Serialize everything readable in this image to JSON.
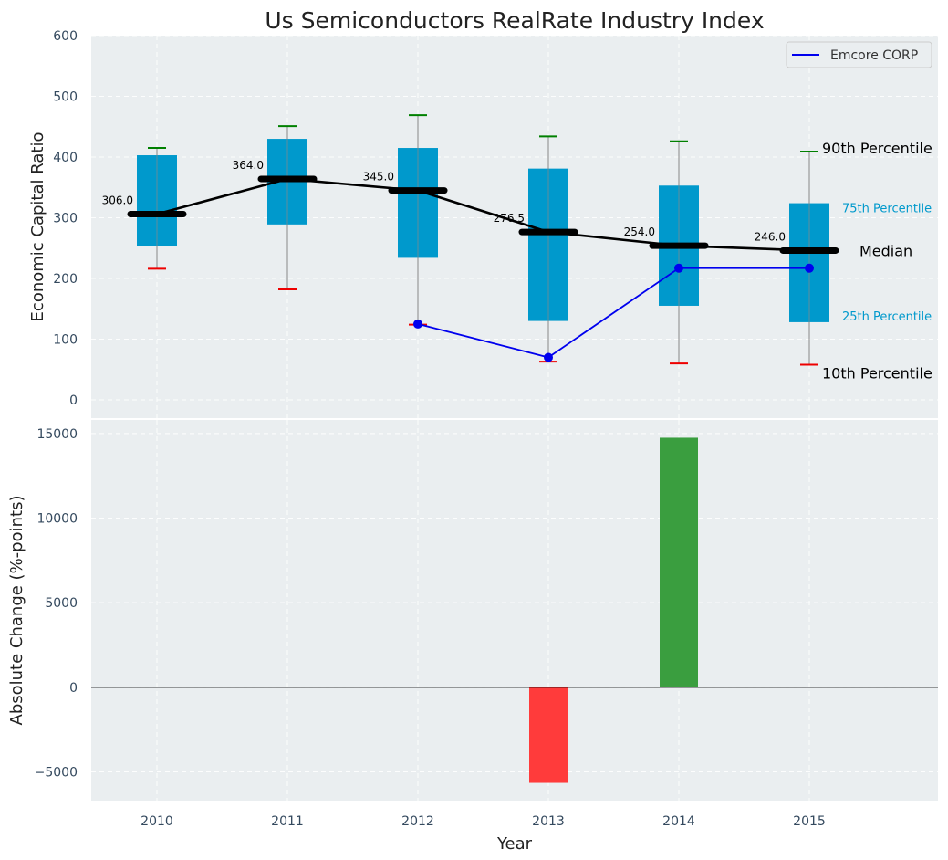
{
  "title": "Us Semiconductors RealRate Industry Index",
  "colors": {
    "plot_bg": "#eaeef0",
    "box_fill": "#0099cc",
    "median_line": "#000000",
    "company_line": "#0000ee",
    "upper_cap": "#008000",
    "lower_cap": "#ee0000",
    "whisker": "#888888",
    "bar_positive": "#3a9e3f",
    "bar_negative": "#ff3b3b",
    "annotation_blue": "#0099cc"
  },
  "chart_data": [
    {
      "type": "box",
      "title": "Us Semiconductors RealRate Industry Index",
      "ylabel": "Economic Capital Ratio",
      "ylim": [
        -30,
        600
      ],
      "yticks": [
        0,
        100,
        200,
        300,
        400,
        500,
        600
      ],
      "categories": [
        "2010",
        "2011",
        "2012",
        "2013",
        "2014",
        "2015"
      ],
      "p10": [
        216,
        182,
        124,
        63,
        60,
        58
      ],
      "p25": [
        253,
        289,
        234,
        130,
        155,
        128
      ],
      "median": [
        306.0,
        364.0,
        345.0,
        276.5,
        254.0,
        246.0
      ],
      "median_labels": [
        "306.0",
        "364.0",
        "345.0",
        "276.5",
        "254.0",
        "246.0"
      ],
      "p75": [
        403,
        430,
        415,
        381,
        353,
        324
      ],
      "p90": [
        415,
        451,
        469,
        434,
        426,
        409
      ],
      "company_series": {
        "name": "Emcore CORP",
        "categories": [
          "2012",
          "2013",
          "2014",
          "2015"
        ],
        "values": [
          125,
          70,
          217,
          217
        ]
      },
      "legend": {
        "entries": [
          "Emcore CORP"
        ],
        "position": "top-right"
      },
      "annotations": {
        "p90": "90th Percentile",
        "p75": "75th Percentile",
        "median": "Median",
        "p25": "25th Percentile",
        "p10": "10th Percentile"
      },
      "grid": true
    },
    {
      "type": "bar",
      "xlabel": "Year",
      "ylabel": "Absolute Change (%-points)",
      "categories": [
        "2010",
        "2011",
        "2012",
        "2013",
        "2014",
        "2015"
      ],
      "values": [
        0,
        0,
        0,
        -5650,
        14750,
        0
      ],
      "ylim": [
        -6700,
        15800
      ],
      "yticks": [
        -5000,
        0,
        5000,
        10000,
        15000
      ],
      "ytick_labels": [
        "−5000",
        "0",
        "5000",
        "10000",
        "15000"
      ],
      "grid": true
    }
  ]
}
